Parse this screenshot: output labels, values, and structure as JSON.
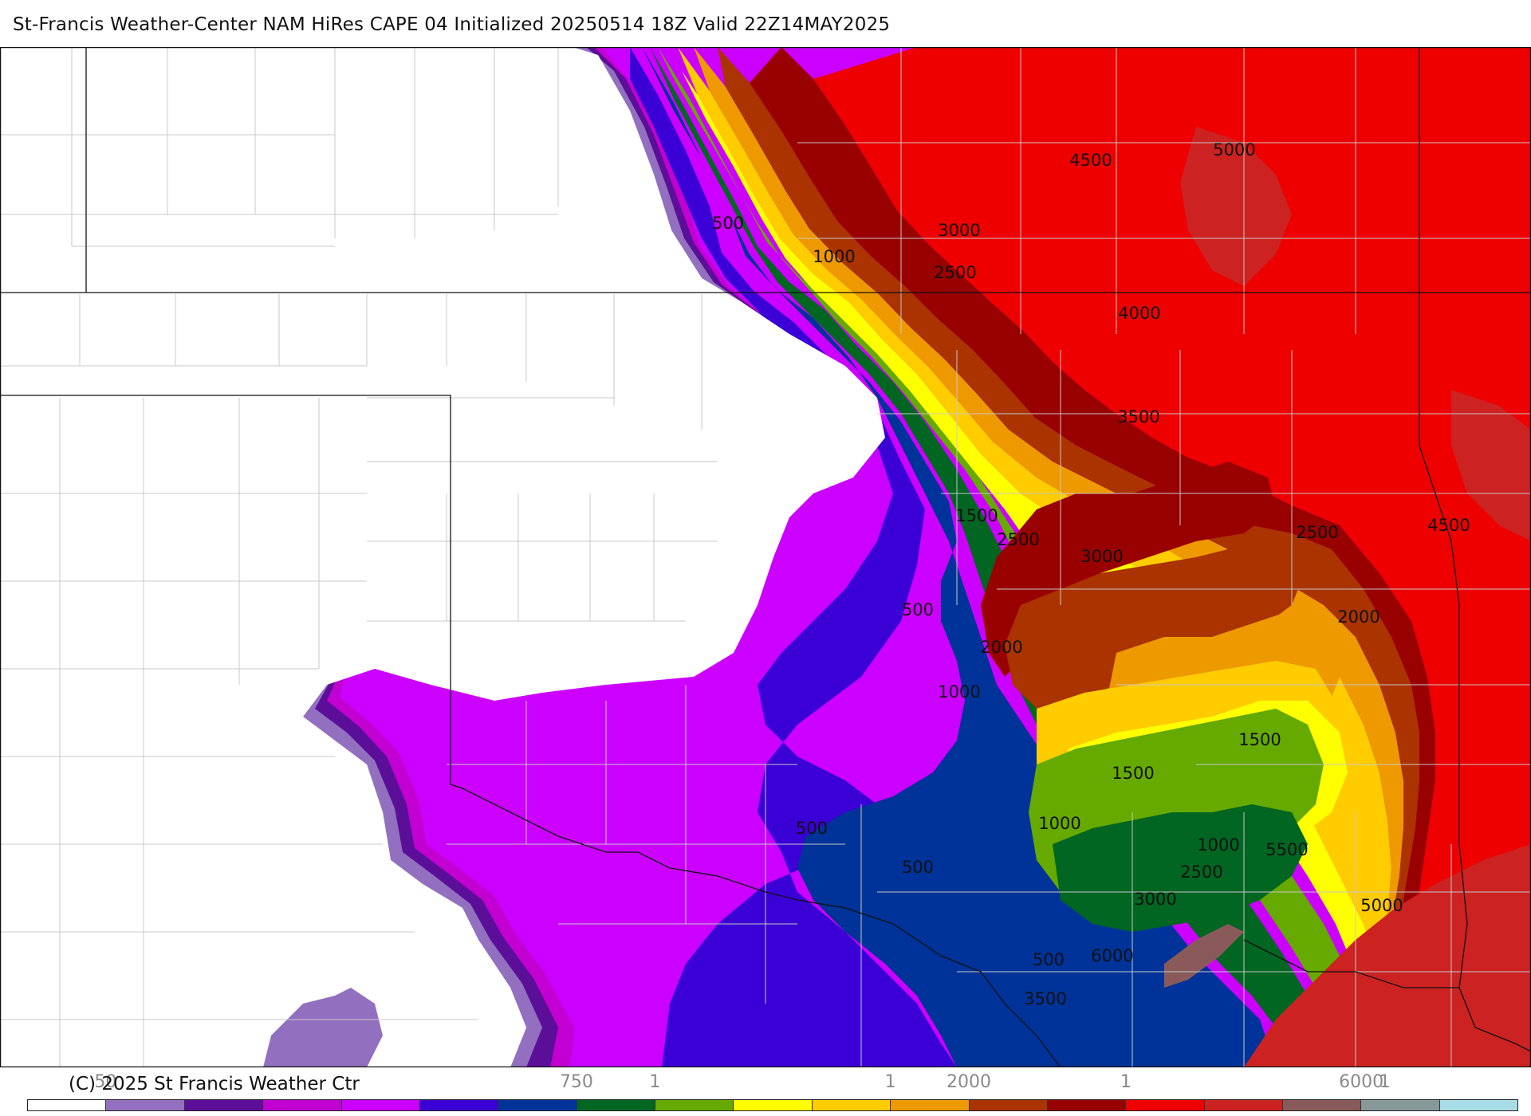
{
  "title": "St-Francis Weather-Center NAM HiRes CAPE  04 Initialized 20250514 18Z Valid 22Z14MAY2025",
  "copyright": "(C) 2025 St Francis Weather Ctr",
  "colors": {
    "background": "#ffffff",
    "border": "#111111",
    "county_lines": "#c8c8c8"
  },
  "legend": {
    "colors": [
      "#ffffff",
      "#9370bf",
      "#5b0f99",
      "#c200d1",
      "#cc00ff",
      "#3a00d6",
      "#003399",
      "#006622",
      "#66aa00",
      "#ffff00",
      "#ffcc00",
      "#ee9900",
      "#aa3300",
      "#990000",
      "#ee0000",
      "#cc2222",
      "#8a5a5a",
      "#88999a",
      "#a8dde8"
    ],
    "ticks": [
      {
        "label": "50",
        "pos": 0
      },
      {
        "label": "750",
        "pos": 6
      },
      {
        "label": "1",
        "pos": 7
      },
      {
        "label": "1",
        "pos": 10
      },
      {
        "label": "2000",
        "pos": 11
      },
      {
        "label": "1",
        "pos": 13
      },
      {
        "label": "6000",
        "pos": 16
      },
      {
        "label": "1",
        "pos": 16.3
      }
    ]
  },
  "map": {
    "contour_labels": [
      {
        "text": "500"
      },
      {
        "text": "1000"
      },
      {
        "text": "3000"
      },
      {
        "text": "2500"
      },
      {
        "text": "4500"
      },
      {
        "text": "5000"
      },
      {
        "text": "4000"
      },
      {
        "text": "3500"
      },
      {
        "text": "1500"
      },
      {
        "text": "2500"
      },
      {
        "text": "3000"
      },
      {
        "text": "2500"
      },
      {
        "text": "4500"
      },
      {
        "text": "500"
      },
      {
        "text": "2000"
      },
      {
        "text": "2000"
      },
      {
        "text": "1000"
      },
      {
        "text": "1500"
      },
      {
        "text": "1500"
      },
      {
        "text": "500"
      },
      {
        "text": "1000"
      },
      {
        "text": "1000"
      },
      {
        "text": "5500"
      },
      {
        "text": "500"
      },
      {
        "text": "2500"
      },
      {
        "text": "3000"
      },
      {
        "text": "5000"
      },
      {
        "text": "500"
      },
      {
        "text": "6000"
      },
      {
        "text": "3500"
      }
    ]
  }
}
